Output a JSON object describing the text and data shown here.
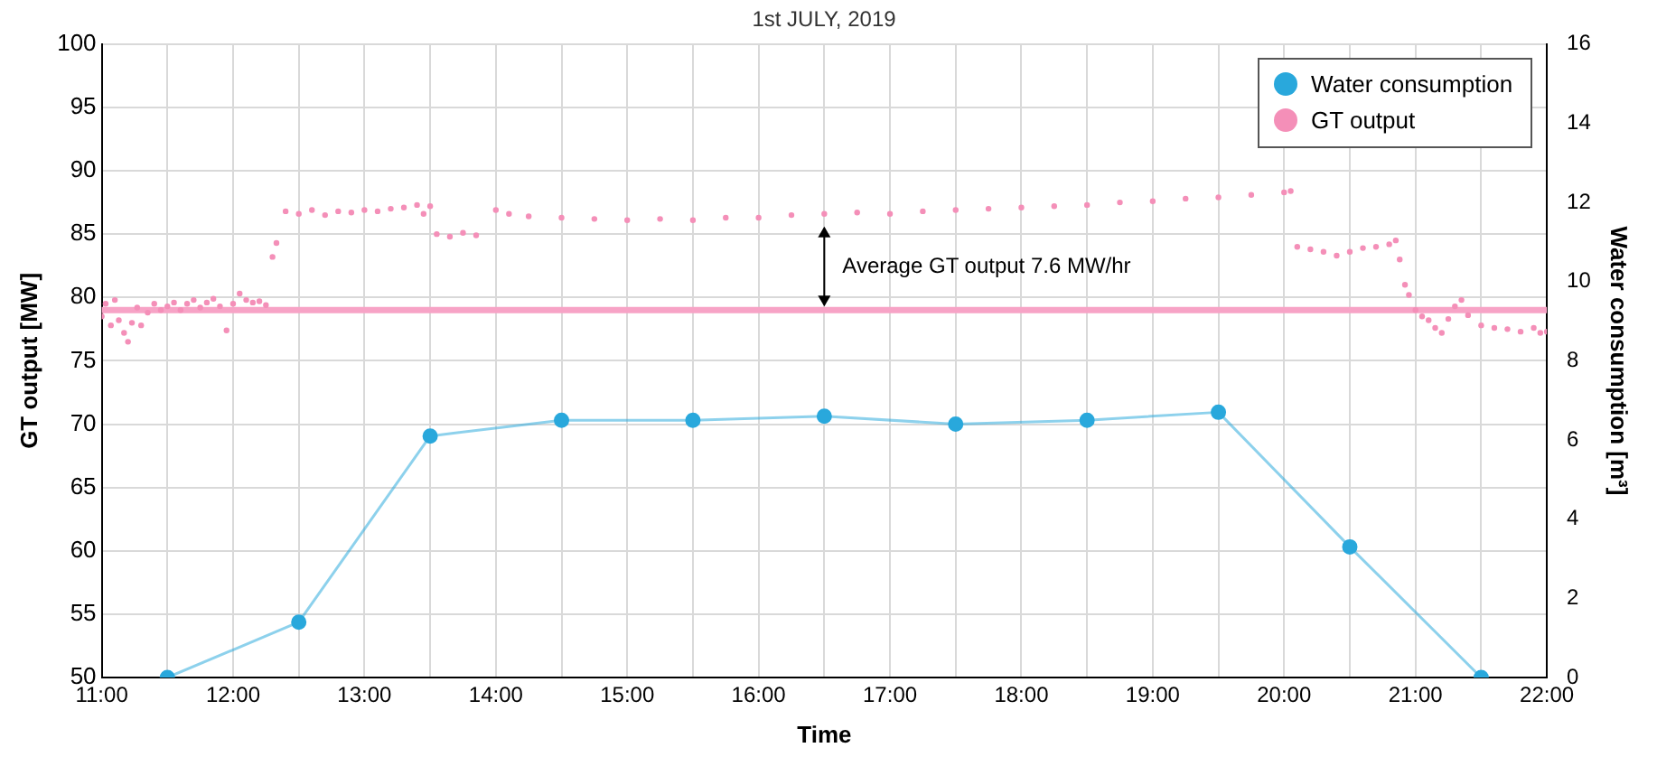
{
  "chart_data": {
    "type": "line",
    "title": "1st JULY, 2019",
    "xlabel": "Time",
    "ylabel": "GT output [MW]",
    "y2label": "Water consumption [m³]",
    "xlim": [
      11,
      22
    ],
    "xticks": [
      {
        "value": 11,
        "label": "11:00"
      },
      {
        "value": 11.5,
        "label": null
      },
      {
        "value": 12,
        "label": "12:00"
      },
      {
        "value": 12.5,
        "label": null
      },
      {
        "value": 13,
        "label": "13:00"
      },
      {
        "value": 13.5,
        "label": null
      },
      {
        "value": 14,
        "label": "14:00"
      },
      {
        "value": 14.5,
        "label": null
      },
      {
        "value": 15,
        "label": "15:00"
      },
      {
        "value": 15.5,
        "label": null
      },
      {
        "value": 16,
        "label": "16:00"
      },
      {
        "value": 16.5,
        "label": null
      },
      {
        "value": 17,
        "label": "17:00"
      },
      {
        "value": 17.5,
        "label": null
      },
      {
        "value": 18,
        "label": "18:00"
      },
      {
        "value": 18.5,
        "label": null
      },
      {
        "value": 19,
        "label": "19:00"
      },
      {
        "value": 19.5,
        "label": null
      },
      {
        "value": 20,
        "label": "20:00"
      },
      {
        "value": 20.5,
        "label": null
      },
      {
        "value": 21,
        "label": "21:00"
      },
      {
        "value": 21.5,
        "label": null
      },
      {
        "value": 22,
        "label": "22:00"
      }
    ],
    "ylim": [
      50,
      100
    ],
    "yticks": [
      50,
      55,
      60,
      65,
      70,
      75,
      80,
      85,
      90,
      95,
      100
    ],
    "y2lim": [
      0,
      16
    ],
    "y2ticks": [
      0,
      2,
      4,
      6,
      8,
      10,
      12,
      14,
      16
    ],
    "grid": true,
    "legend": "top right",
    "marker": "circle",
    "series": [
      {
        "name": "Water consumption",
        "axis": "y2",
        "color": "#29a8dc",
        "x": [
          11.5,
          12.5,
          13.5,
          14.5,
          15.5,
          16.5,
          17.5,
          18.5,
          19.5,
          20.5,
          21.5
        ],
        "values": [
          0,
          1.4,
          6.1,
          6.5,
          6.5,
          6.6,
          6.4,
          6.5,
          6.7,
          3.3,
          0
        ]
      },
      {
        "name": "GT output",
        "type": "scatter",
        "color": "#f48fb8",
        "x": [
          11.0,
          11.03,
          11.07,
          11.1,
          11.13,
          11.17,
          11.2,
          11.23,
          11.27,
          11.3,
          11.35,
          11.4,
          11.45,
          11.5,
          11.55,
          11.6,
          11.65,
          11.7,
          11.75,
          11.8,
          11.85,
          11.9,
          11.95,
          12.0,
          12.05,
          12.1,
          12.15,
          12.2,
          12.25,
          12.3,
          12.33,
          12.4,
          12.5,
          12.6,
          12.7,
          12.8,
          12.9,
          13.0,
          13.1,
          13.2,
          13.3,
          13.4,
          13.45,
          13.5,
          13.55,
          13.65,
          13.75,
          13.85,
          14.0,
          14.1,
          14.25,
          14.5,
          14.75,
          15.0,
          15.25,
          15.5,
          15.75,
          16.0,
          16.25,
          16.5,
          16.75,
          17.0,
          17.25,
          17.5,
          17.75,
          18.0,
          18.25,
          18.5,
          18.75,
          19.0,
          19.25,
          19.5,
          19.75,
          20.0,
          20.05,
          20.1,
          20.2,
          20.3,
          20.4,
          20.5,
          20.6,
          20.7,
          20.8,
          20.85,
          20.88,
          20.92,
          20.95,
          21.0,
          21.05,
          21.1,
          21.15,
          21.2,
          21.25,
          21.3,
          21.35,
          21.4,
          21.5,
          21.6,
          21.7,
          21.8,
          21.9,
          21.95,
          22.0
        ],
        "values": [
          78.5,
          79.5,
          77.8,
          79.8,
          78.2,
          77.2,
          76.5,
          78.0,
          79.2,
          77.8,
          78.8,
          79.5,
          79.0,
          79.3,
          79.6,
          79.0,
          79.5,
          79.8,
          79.2,
          79.6,
          79.9,
          79.3,
          77.4,
          79.5,
          80.3,
          79.8,
          79.6,
          79.7,
          79.4,
          83.2,
          84.3,
          86.8,
          86.6,
          86.9,
          86.5,
          86.8,
          86.7,
          86.9,
          86.8,
          87.0,
          87.1,
          87.3,
          86.6,
          87.2,
          85.0,
          84.8,
          85.1,
          84.9,
          86.9,
          86.6,
          86.4,
          86.3,
          86.2,
          86.1,
          86.2,
          86.1,
          86.3,
          86.3,
          86.5,
          86.6,
          86.7,
          86.6,
          86.8,
          86.9,
          87.0,
          87.1,
          87.2,
          87.3,
          87.5,
          87.6,
          87.8,
          87.9,
          88.1,
          88.3,
          88.4,
          84.0,
          83.8,
          83.6,
          83.3,
          83.6,
          83.9,
          84.0,
          84.2,
          84.5,
          83.0,
          81.0,
          80.2,
          79.0,
          78.5,
          78.2,
          77.6,
          77.2,
          78.3,
          79.3,
          79.8,
          78.6,
          77.8,
          77.6,
          77.5,
          77.3,
          77.6,
          77.2,
          77.3
        ]
      }
    ],
    "ref_lines": [
      {
        "axis": "y",
        "value": 79,
        "color": "#f7a3c6"
      }
    ],
    "annotations": [
      "Average GT output 7.6 MW/hr"
    ]
  }
}
